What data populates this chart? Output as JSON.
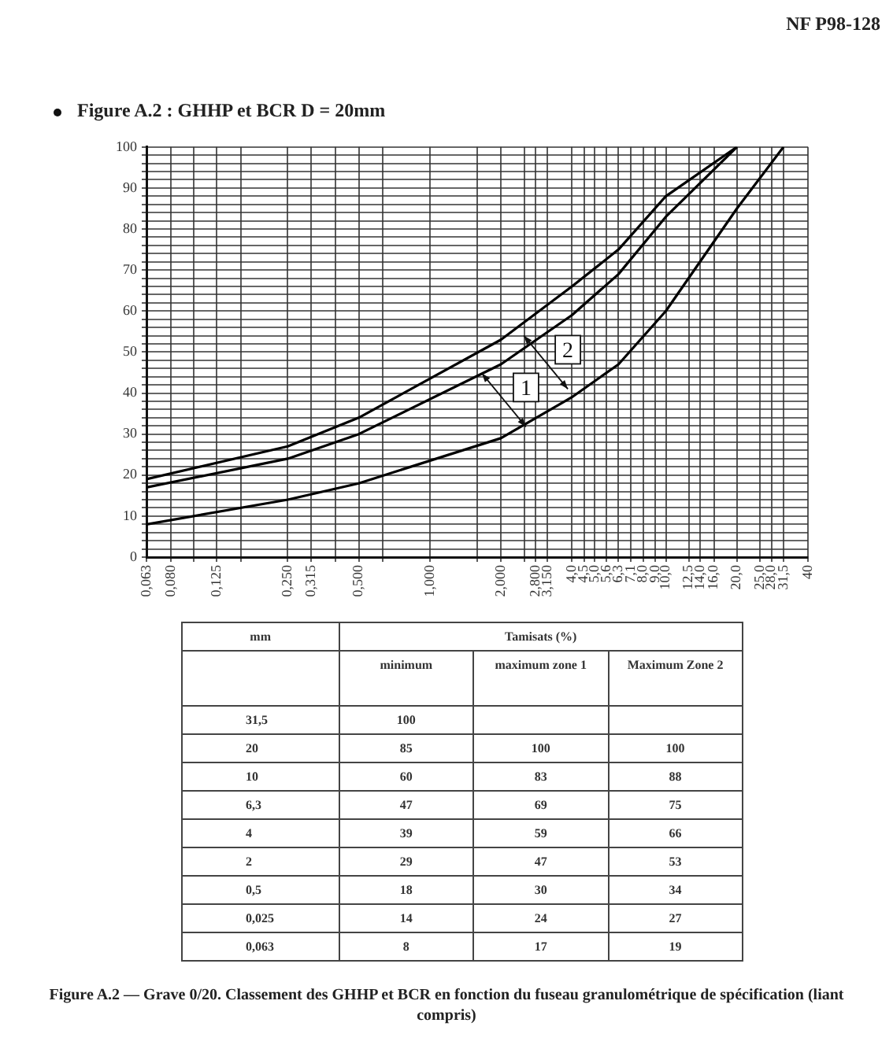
{
  "chart_data": [
    {
      "type": "line",
      "title": "Figure A.2 : GHHP et BCR D = 20mm",
      "x": [
        0.063,
        0.25,
        0.5,
        2,
        4,
        6.3,
        10,
        20,
        31.5
      ],
      "series": [
        {
          "color": "#000000",
          "values": [
            8,
            14,
            18,
            29,
            39,
            47,
            60,
            85,
            100
          ]
        },
        {
          "color": "#000000",
          "values": [
            17,
            24,
            30,
            47,
            59,
            69,
            83,
            100,
            null
          ]
        },
        {
          "color": "#000000",
          "values": [
            19,
            27,
            34,
            53,
            66,
            75,
            88,
            100,
            null
          ]
        }
      ],
      "log": "x",
      "xlim": [
        0.063,
        40
      ],
      "ylim": [
        0,
        100
      ],
      "xticks": [
        {
          "value": 0.063,
          "label": "0,063"
        },
        {
          "value": 0.08,
          "label": "0,080"
        },
        {
          "value": 0.1,
          "label": null
        },
        {
          "value": 0.125,
          "label": "0,125"
        },
        {
          "value": 0.158,
          "label": null
        },
        {
          "value": 0.25,
          "label": "0,250"
        },
        {
          "value": 0.315,
          "label": "0,315"
        },
        {
          "value": 0.398,
          "label": null
        },
        {
          "value": 0.5,
          "label": "0,500"
        },
        {
          "value": 0.631,
          "label": null
        },
        {
          "value": 1,
          "label": "1,000"
        },
        {
          "value": 1.585,
          "label": null
        },
        {
          "value": 2,
          "label": "2,000"
        },
        {
          "value": 2.512,
          "label": null
        },
        {
          "value": 2.8,
          "label": "2,800"
        },
        {
          "value": 3.15,
          "label": "3,150"
        },
        {
          "value": 4,
          "label": "4,0"
        },
        {
          "value": 4.5,
          "label": "4,5"
        },
        {
          "value": 5,
          "label": "5,0"
        },
        {
          "value": 5.6,
          "label": "5,6"
        },
        {
          "value": 6.3,
          "label": "6,3"
        },
        {
          "value": 7.1,
          "label": "7,1"
        },
        {
          "value": 8,
          "label": "8,0"
        },
        {
          "value": 9,
          "label": "9,0"
        },
        {
          "value": 10,
          "label": "10,0"
        },
        {
          "value": 12.5,
          "label": "12,5"
        },
        {
          "value": 14,
          "label": "14,0"
        },
        {
          "value": 16,
          "label": "16,0"
        },
        {
          "value": 20,
          "label": "20,0"
        },
        {
          "value": 25,
          "label": "25,0"
        },
        {
          "value": 28,
          "label": "28,0"
        },
        {
          "value": 31.5,
          "label": "31,5"
        },
        40
      ],
      "yticks": [
        0,
        {
          "value": 2,
          "label": null
        },
        {
          "value": 4,
          "label": null
        },
        {
          "value": 6,
          "label": null
        },
        {
          "value": 8,
          "label": null
        },
        10,
        {
          "value": 12,
          "label": null
        },
        {
          "value": 14,
          "label": null
        },
        {
          "value": 16,
          "label": null
        },
        {
          "value": 18,
          "label": null
        },
        20,
        {
          "value": 22,
          "label": null
        },
        {
          "value": 24,
          "label": null
        },
        {
          "value": 26,
          "label": null
        },
        {
          "value": 28,
          "label": null
        },
        30,
        {
          "value": 32,
          "label": null
        },
        {
          "value": 34,
          "label": null
        },
        {
          "value": 36,
          "label": null
        },
        {
          "value": 38,
          "label": null
        },
        40,
        {
          "value": 42,
          "label": null
        },
        {
          "value": 44,
          "label": null
        },
        {
          "value": 46,
          "label": null
        },
        {
          "value": 48,
          "label": null
        },
        50,
        {
          "value": 52,
          "label": null
        },
        {
          "value": 54,
          "label": null
        },
        {
          "value": 56,
          "label": null
        },
        {
          "value": 58,
          "label": null
        },
        60,
        {
          "value": 62,
          "label": null
        },
        {
          "value": 64,
          "label": null
        },
        {
          "value": 66,
          "label": null
        },
        {
          "value": 68,
          "label": null
        },
        70,
        {
          "value": 72,
          "label": null
        },
        {
          "value": 74,
          "label": null
        },
        {
          "value": 76,
          "label": null
        },
        {
          "value": 78,
          "label": null
        },
        80,
        {
          "value": 82,
          "label": null
        },
        {
          "value": 84,
          "label": null
        },
        {
          "value": 86,
          "label": null
        },
        {
          "value": 88,
          "label": null
        },
        90,
        {
          "value": 92,
          "label": null
        },
        {
          "value": 94,
          "label": null
        },
        {
          "value": 96,
          "label": null
        },
        {
          "value": 98,
          "label": null
        },
        100
      ],
      "grid": true,
      "legend": false,
      "marker": "none",
      "line_style": "solid",
      "annotations": [
        "NF P98-128",
        {
          "text": "1",
          "x": 2.06,
          "y": 38.3
        },
        {
          "text": "2",
          "x": 3.1,
          "y": 47.5
        }
      ]
    },
    {
      "type": "other",
      "annotations": [
        "mm",
        "Tamisats (%)",
        "minimum",
        "maximum zone 1",
        "Maximum Zone 2",
        "31,5",
        "100",
        null,
        null,
        "20",
        "85",
        "100",
        "100",
        "10",
        "60",
        "83",
        "88",
        "6,3",
        "47",
        "69",
        "75",
        "4",
        "39",
        "59",
        "66",
        "2",
        "29",
        "47",
        "53",
        "0,5",
        "18",
        "30",
        "34",
        "0,025",
        "14",
        "24",
        "27",
        "0,063",
        "8",
        "17",
        "19",
        "Figure A.2 — Grave 0/20. Classement des GHHP et BCR en fonction du fuseau granulométrique de spécification (liant compris)"
      ]
    }
  ]
}
